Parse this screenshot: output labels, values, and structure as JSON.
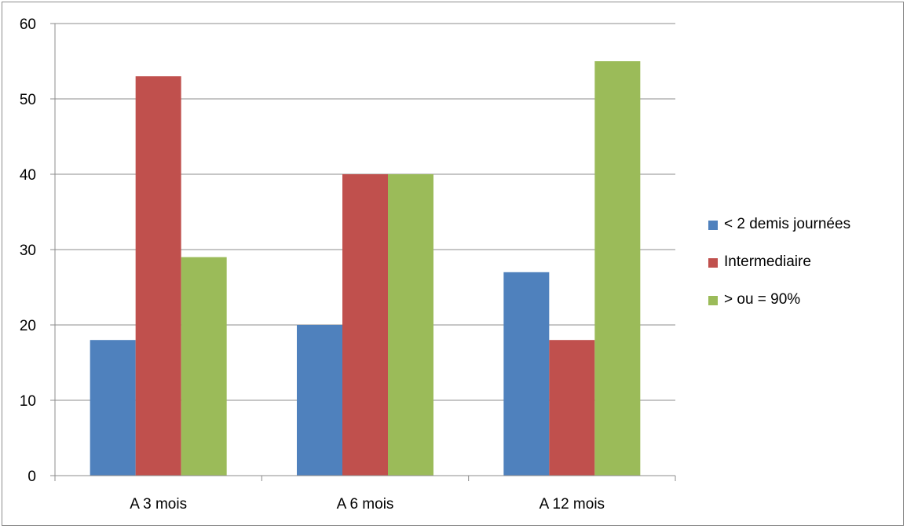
{
  "chart_data": {
    "type": "bar",
    "title": "",
    "xlabel": "",
    "ylabel": "",
    "categories": [
      "A 3 mois",
      "A 6 mois",
      "A 12 mois"
    ],
    "series": [
      {
        "name": "< 2 demis journées",
        "color": "#4F81BD",
        "values": [
          18,
          20,
          27
        ]
      },
      {
        "name": "Intermediaire",
        "color": "#C0504D",
        "values": [
          53,
          40,
          18
        ]
      },
      {
        "name": "> ou = 90%",
        "color": "#9BBB59",
        "values": [
          29,
          40,
          55
        ]
      }
    ],
    "ylim": [
      0,
      60
    ],
    "yticks": [
      "0",
      "10",
      "20",
      "30",
      "40",
      "50",
      "60"
    ],
    "grid": true,
    "legend_position": "right"
  }
}
